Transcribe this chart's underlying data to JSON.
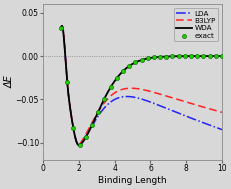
{
  "title": "",
  "xlabel": "Binding Length",
  "ylabel": "ΔE",
  "xlim": [
    0,
    10
  ],
  "ylim": [
    -0.12,
    0.06
  ],
  "yticks": [
    -0.1,
    -0.05,
    0.0,
    0.05
  ],
  "xticks": [
    0,
    2,
    4,
    6,
    8,
    10
  ],
  "figsize": [
    2.31,
    1.89
  ],
  "dpi": 100,
  "legend_labels": [
    "WDA",
    "B3LYP",
    "LDA",
    "exact"
  ],
  "wda_color": "#000000",
  "b3lyp_color": "#ff2222",
  "lda_color": "#2222ff",
  "exact_color": "#22cc00",
  "background_color": "#d8d8d8"
}
